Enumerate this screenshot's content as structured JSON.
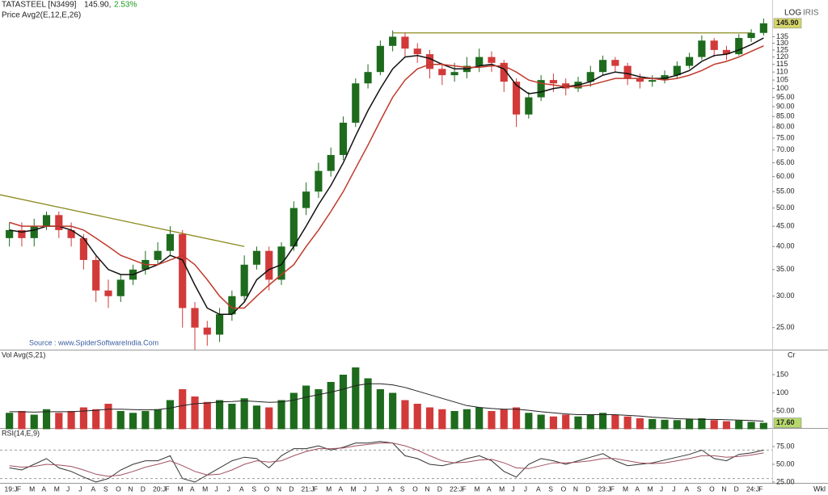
{
  "chart_data": [
    {
      "type": "candlestick",
      "title": "TATASTEEL [N3499]",
      "price_label": "145.90,",
      "change": "2.53%",
      "subtitle": "Price  Avg2(E,12,E,26)",
      "scale_label": "LOG",
      "tool_label": "IRIS",
      "source": "Source : www.SpiderSoftwareIndia.Com",
      "categories": [
        "19:J",
        "F",
        "M",
        "A",
        "M",
        "J",
        "J",
        "A",
        "S",
        "O",
        "N",
        "D",
        "20:J",
        "F",
        "M",
        "A",
        "M",
        "J",
        "J",
        "A",
        "S",
        "O",
        "N",
        "D",
        "21:J",
        "F",
        "M",
        "A",
        "M",
        "J",
        "J",
        "A",
        "S",
        "O",
        "N",
        "D",
        "22:J",
        "F",
        "M",
        "A",
        "M",
        "J",
        "J",
        "A",
        "S",
        "O",
        "N",
        "D",
        "23:J",
        "F",
        "M",
        "A",
        "M",
        "J",
        "J",
        "A",
        "S",
        "O",
        "N",
        "D",
        "24:J",
        "F"
      ],
      "open": [
        42,
        44,
        42,
        45,
        48,
        44,
        42,
        37,
        31,
        30,
        33,
        35,
        37,
        39,
        43,
        28,
        25,
        24,
        27,
        30,
        36,
        39,
        33,
        40,
        50,
        55,
        62,
        68,
        82,
        103,
        110,
        128,
        135,
        126,
        122,
        112,
        108,
        110,
        114,
        120,
        116,
        104,
        86,
        95,
        105,
        103,
        100,
        104,
        110,
        118,
        114,
        106,
        104,
        105,
        108,
        114,
        120,
        132,
        125,
        122,
        134,
        138
      ],
      "high": [
        46,
        46,
        47,
        49,
        49,
        46,
        43,
        38,
        33,
        34,
        36,
        39,
        41,
        45,
        44,
        29,
        26,
        28,
        31,
        38,
        40,
        40,
        41,
        52,
        58,
        65,
        71,
        85,
        106,
        115,
        132,
        140,
        138,
        130,
        125,
        116,
        116,
        120,
        126,
        124,
        118,
        106,
        98,
        108,
        109,
        106,
        107,
        114,
        121,
        120,
        116,
        109,
        108,
        111,
        117,
        123,
        136,
        134,
        128,
        137,
        141,
        150
      ],
      "low": [
        40,
        40,
        40,
        44,
        42,
        40,
        35,
        29,
        28,
        29,
        32,
        34,
        36,
        38,
        25,
        22,
        22.5,
        23,
        26,
        29,
        35,
        31,
        32,
        39,
        48,
        53,
        60,
        66,
        80,
        100,
        108,
        124,
        120,
        116,
        106,
        102,
        104,
        106,
        110,
        110,
        98,
        80,
        84,
        93,
        98,
        96,
        98,
        101,
        108,
        110,
        102,
        100,
        101,
        103,
        106,
        112,
        118,
        120,
        118,
        121,
        131,
        136
      ],
      "close": [
        44,
        42,
        45,
        48,
        44,
        42,
        37,
        31,
        30,
        33,
        35,
        37,
        39,
        43,
        28,
        25,
        24,
        27,
        30,
        36,
        39,
        33,
        40,
        50,
        55,
        62,
        68,
        82,
        103,
        110,
        128,
        135,
        126,
        122,
        112,
        108,
        110,
        114,
        120,
        116,
        104,
        86,
        95,
        105,
        103,
        100,
        104,
        110,
        118,
        114,
        106,
        104,
        105,
        108,
        114,
        120,
        132,
        125,
        122,
        134,
        138,
        145.9
      ],
      "up_color": "#1e6b1e",
      "down_color": "#d23a3a",
      "series": [
        {
          "color": "#111111",
          "values": [
            44,
            43.5,
            44,
            45,
            45,
            44,
            42,
            38,
            35,
            34,
            34,
            35,
            36,
            38,
            37,
            32,
            28,
            27,
            27,
            29,
            33,
            35,
            36,
            40,
            45,
            51,
            57,
            65,
            76,
            88,
            100,
            112,
            120,
            121,
            119,
            115,
            112,
            112,
            114,
            115,
            112,
            102,
            97,
            98,
            100,
            101,
            102,
            104,
            108,
            110,
            109,
            107,
            106,
            106,
            108,
            111,
            117,
            121,
            122,
            125,
            129,
            134
          ]
        },
        {
          "color": "#c0392b",
          "values": [
            46,
            45,
            45,
            45,
            45,
            45,
            44,
            42,
            40,
            38,
            37,
            36,
            36,
            37,
            38,
            36,
            33,
            30,
            28,
            28,
            30,
            32,
            34,
            36,
            40,
            44,
            49,
            55,
            63,
            72,
            83,
            95,
            105,
            112,
            115,
            115,
            114,
            113,
            113,
            114,
            114,
            110,
            105,
            103,
            102,
            101,
            101,
            102,
            104,
            106,
            106,
            106,
            106,
            105,
            106,
            108,
            111,
            115,
            117,
            120,
            124,
            128
          ]
        }
      ],
      "trendlines": [
        {
          "color": "#8a8a1e",
          "x": [
            0,
            19
          ],
          "values": [
            54,
            40
          ]
        },
        {
          "color": "#8a8a1e",
          "x": [
            31,
            60
          ],
          "values": [
            138,
            138
          ]
        }
      ],
      "last_price": {
        "value": 145.9,
        "label": "145.90"
      },
      "last_color": "#d6d66a",
      "log_scale": true,
      "ylim": [
        22,
        167
      ],
      "yticks": [
        {
          "value": 25,
          "label": "25.00"
        },
        {
          "value": 30,
          "label": "30.00"
        },
        {
          "value": 35,
          "label": "35.00"
        },
        {
          "value": 40,
          "label": "40.00"
        },
        {
          "value": 45,
          "label": "45.00"
        },
        {
          "value": 50,
          "label": "50.00"
        },
        {
          "value": 55,
          "label": "55.00"
        },
        {
          "value": 60,
          "label": "60.00"
        },
        {
          "value": 65,
          "label": "65.00"
        },
        {
          "value": 70,
          "label": "70.00"
        },
        {
          "value": 75,
          "label": "75.00"
        },
        {
          "value": 80,
          "label": "80.00"
        },
        {
          "value": 85,
          "label": "85.00"
        },
        {
          "value": 90,
          "label": "90.00"
        },
        {
          "value": 95,
          "label": "95.00"
        },
        100,
        105,
        110,
        115,
        120,
        125,
        130,
        135
      ]
    },
    {
      "type": "bar",
      "title": "Vol  Avg(S,21)",
      "unit_label": "Cr",
      "values": [
        45,
        50,
        40,
        55,
        45,
        50,
        60,
        55,
        70,
        50,
        45,
        50,
        55,
        80,
        110,
        90,
        75,
        80,
        70,
        85,
        65,
        60,
        80,
        100,
        120,
        110,
        130,
        150,
        170,
        140,
        110,
        100,
        80,
        70,
        60,
        55,
        50,
        55,
        60,
        50,
        55,
        60,
        45,
        40,
        35,
        40,
        35,
        40,
        45,
        40,
        35,
        30,
        28,
        26,
        25,
        28,
        30,
        25,
        22,
        24,
        20,
        17.6
      ],
      "series": [
        {
          "color": "#222222",
          "values": [
            48,
            48,
            47,
            48,
            48,
            48,
            50,
            52,
            55,
            55,
            54,
            53,
            54,
            58,
            65,
            70,
            72,
            75,
            76,
            78,
            76,
            74,
            75,
            80,
            88,
            95,
            102,
            110,
            120,
            125,
            125,
            122,
            115,
            105,
            95,
            85,
            75,
            65,
            60,
            57,
            55,
            55,
            52,
            48,
            45,
            42,
            40,
            40,
            40,
            40,
            38,
            36,
            33,
            31,
            29,
            28,
            27,
            27,
            26,
            25,
            24,
            22
          ]
        }
      ],
      "last_value": {
        "value": 17.6,
        "label": "17.60"
      },
      "last_color": "#b5d86a",
      "ylim": [
        0,
        190
      ],
      "yticks": [
        {
          "value": 50,
          "label": "50.00"
        },
        100,
        150
      ]
    },
    {
      "type": "line",
      "title": "RSI(14,E,9)",
      "period_label": "Wkl",
      "series": [
        {
          "color": "#333333",
          "values": [
            45,
            42,
            50,
            58,
            45,
            40,
            32,
            25,
            30,
            42,
            50,
            55,
            55,
            62,
            30,
            25,
            35,
            45,
            55,
            60,
            58,
            45,
            62,
            72,
            72,
            76,
            70,
            74,
            80,
            80,
            82,
            80,
            62,
            58,
            50,
            48,
            52,
            58,
            62,
            55,
            40,
            32,
            50,
            58,
            55,
            50,
            55,
            60,
            65,
            55,
            48,
            50,
            52,
            56,
            60,
            64,
            70,
            58,
            55,
            64,
            66,
            70
          ]
        },
        {
          "color": "#a05060",
          "values": [
            48,
            46,
            47,
            50,
            49,
            47,
            42,
            36,
            33,
            35,
            40,
            46,
            50,
            55,
            48,
            40,
            35,
            36,
            42,
            50,
            55,
            53,
            55,
            62,
            68,
            72,
            72,
            73,
            76,
            78,
            80,
            80,
            76,
            70,
            62,
            55,
            52,
            53,
            56,
            57,
            52,
            45,
            44,
            48,
            52,
            52,
            53,
            55,
            58,
            58,
            55,
            52,
            51,
            52,
            55,
            58,
            62,
            62,
            60,
            61,
            63,
            66
          ]
        }
      ],
      "reference_lines": [
        70,
        30
      ],
      "ylim": [
        22,
        95
      ],
      "yticks": [
        {
          "value": 25,
          "label": "25.00"
        },
        {
          "value": 50,
          "label": "50.00"
        },
        {
          "value": 75,
          "label": "75.00"
        }
      ]
    }
  ]
}
